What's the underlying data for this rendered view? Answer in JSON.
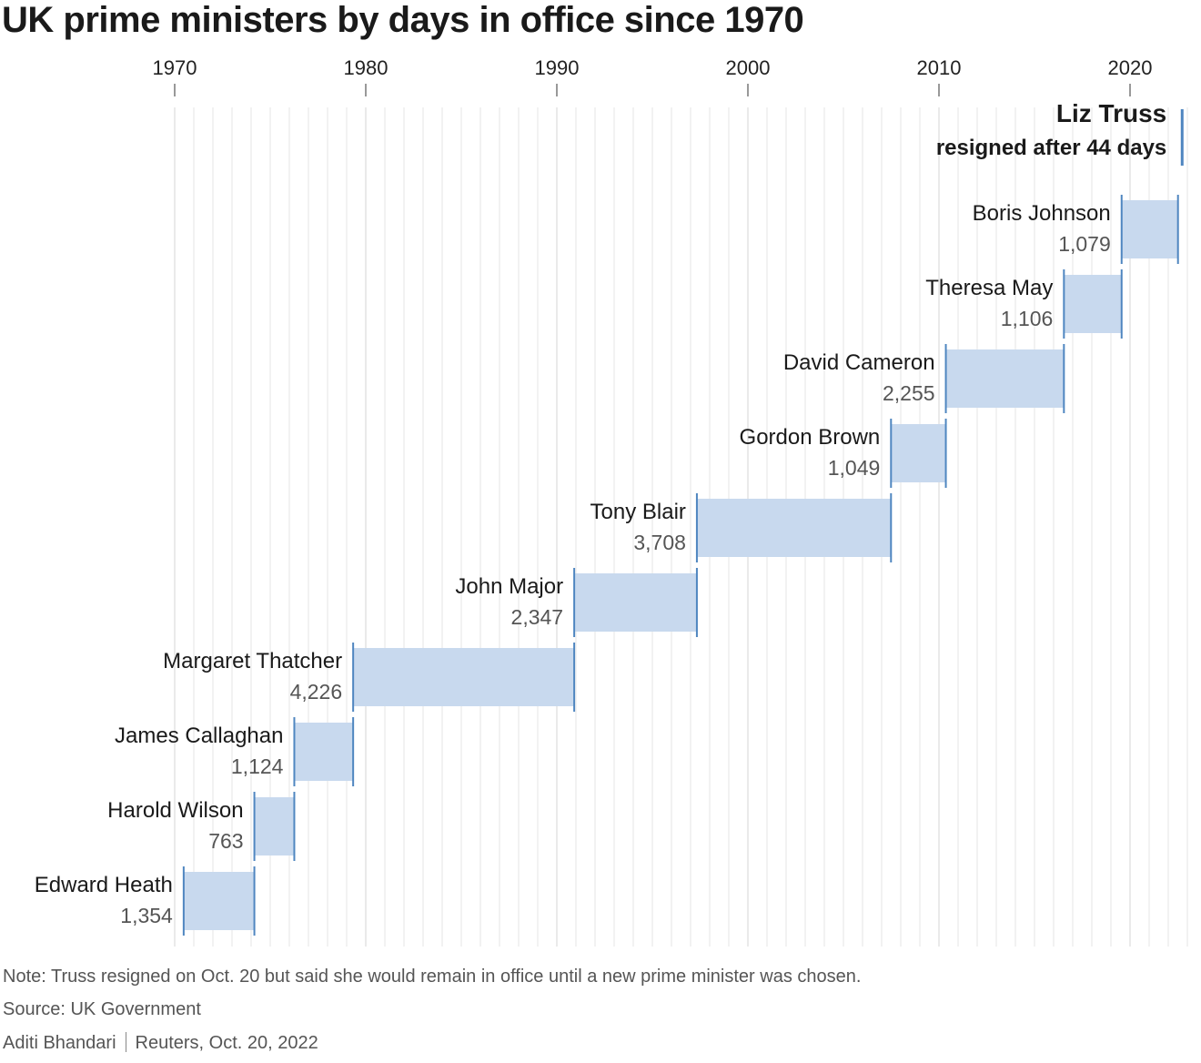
{
  "title": "UK prime ministers by days in office since 1970",
  "chart_data": {
    "type": "bar",
    "orientation": "horizontal-timeline",
    "title": "UK prime ministers by days in office since 1970",
    "x_axis": {
      "ticks": [
        "1970",
        "1980",
        "1990",
        "2000",
        "2010",
        "2020"
      ],
      "range": [
        1970,
        2023
      ],
      "position": "top",
      "grid": true
    },
    "colors": {
      "bar_fill": "#c8d9ee",
      "bar_edge": "#4f86c0",
      "grid": "#e6e6e6"
    },
    "series": [
      {
        "name": "Edward Heath",
        "days": 1354,
        "days_label": "1,354",
        "start": 1970.47,
        "end": 1974.17
      },
      {
        "name": "Harold Wilson",
        "days": 763,
        "days_label": "763",
        "start": 1974.17,
        "end": 1976.26
      },
      {
        "name": "James Callaghan",
        "days": 1124,
        "days_label": "1,124",
        "start": 1976.26,
        "end": 1979.34
      },
      {
        "name": "Margaret Thatcher",
        "days": 4226,
        "days_label": "4,226",
        "start": 1979.34,
        "end": 1990.91
      },
      {
        "name": "John Major",
        "days": 2347,
        "days_label": "2,347",
        "start": 1990.91,
        "end": 1997.33
      },
      {
        "name": "Tony Blair",
        "days": 3708,
        "days_label": "3,708",
        "start": 1997.33,
        "end": 2007.49
      },
      {
        "name": "Gordon Brown",
        "days": 1049,
        "days_label": "1,049",
        "start": 2007.49,
        "end": 2010.36
      },
      {
        "name": "David Cameron",
        "days": 2255,
        "days_label": "2,255",
        "start": 2010.36,
        "end": 2016.54
      },
      {
        "name": "Theresa May",
        "days": 1106,
        "days_label": "1,106",
        "start": 2016.54,
        "end": 2019.56
      },
      {
        "name": "Boris Johnson",
        "days": 1079,
        "days_label": "1,079",
        "start": 2019.56,
        "end": 2022.51
      },
      {
        "name": "Liz Truss",
        "days": 44,
        "days_label": "resigned after 44 days",
        "start": 2022.68,
        "end": 2022.8,
        "highlight": true
      }
    ]
  },
  "footer": {
    "note": "Note: Truss resigned on Oct. 20 but said she would remain in office until a new prime minister was chosen.",
    "source": "Source: UK Government",
    "author": "Aditi Bhandari",
    "publisher": "Reuters, Oct. 20, 2022"
  }
}
